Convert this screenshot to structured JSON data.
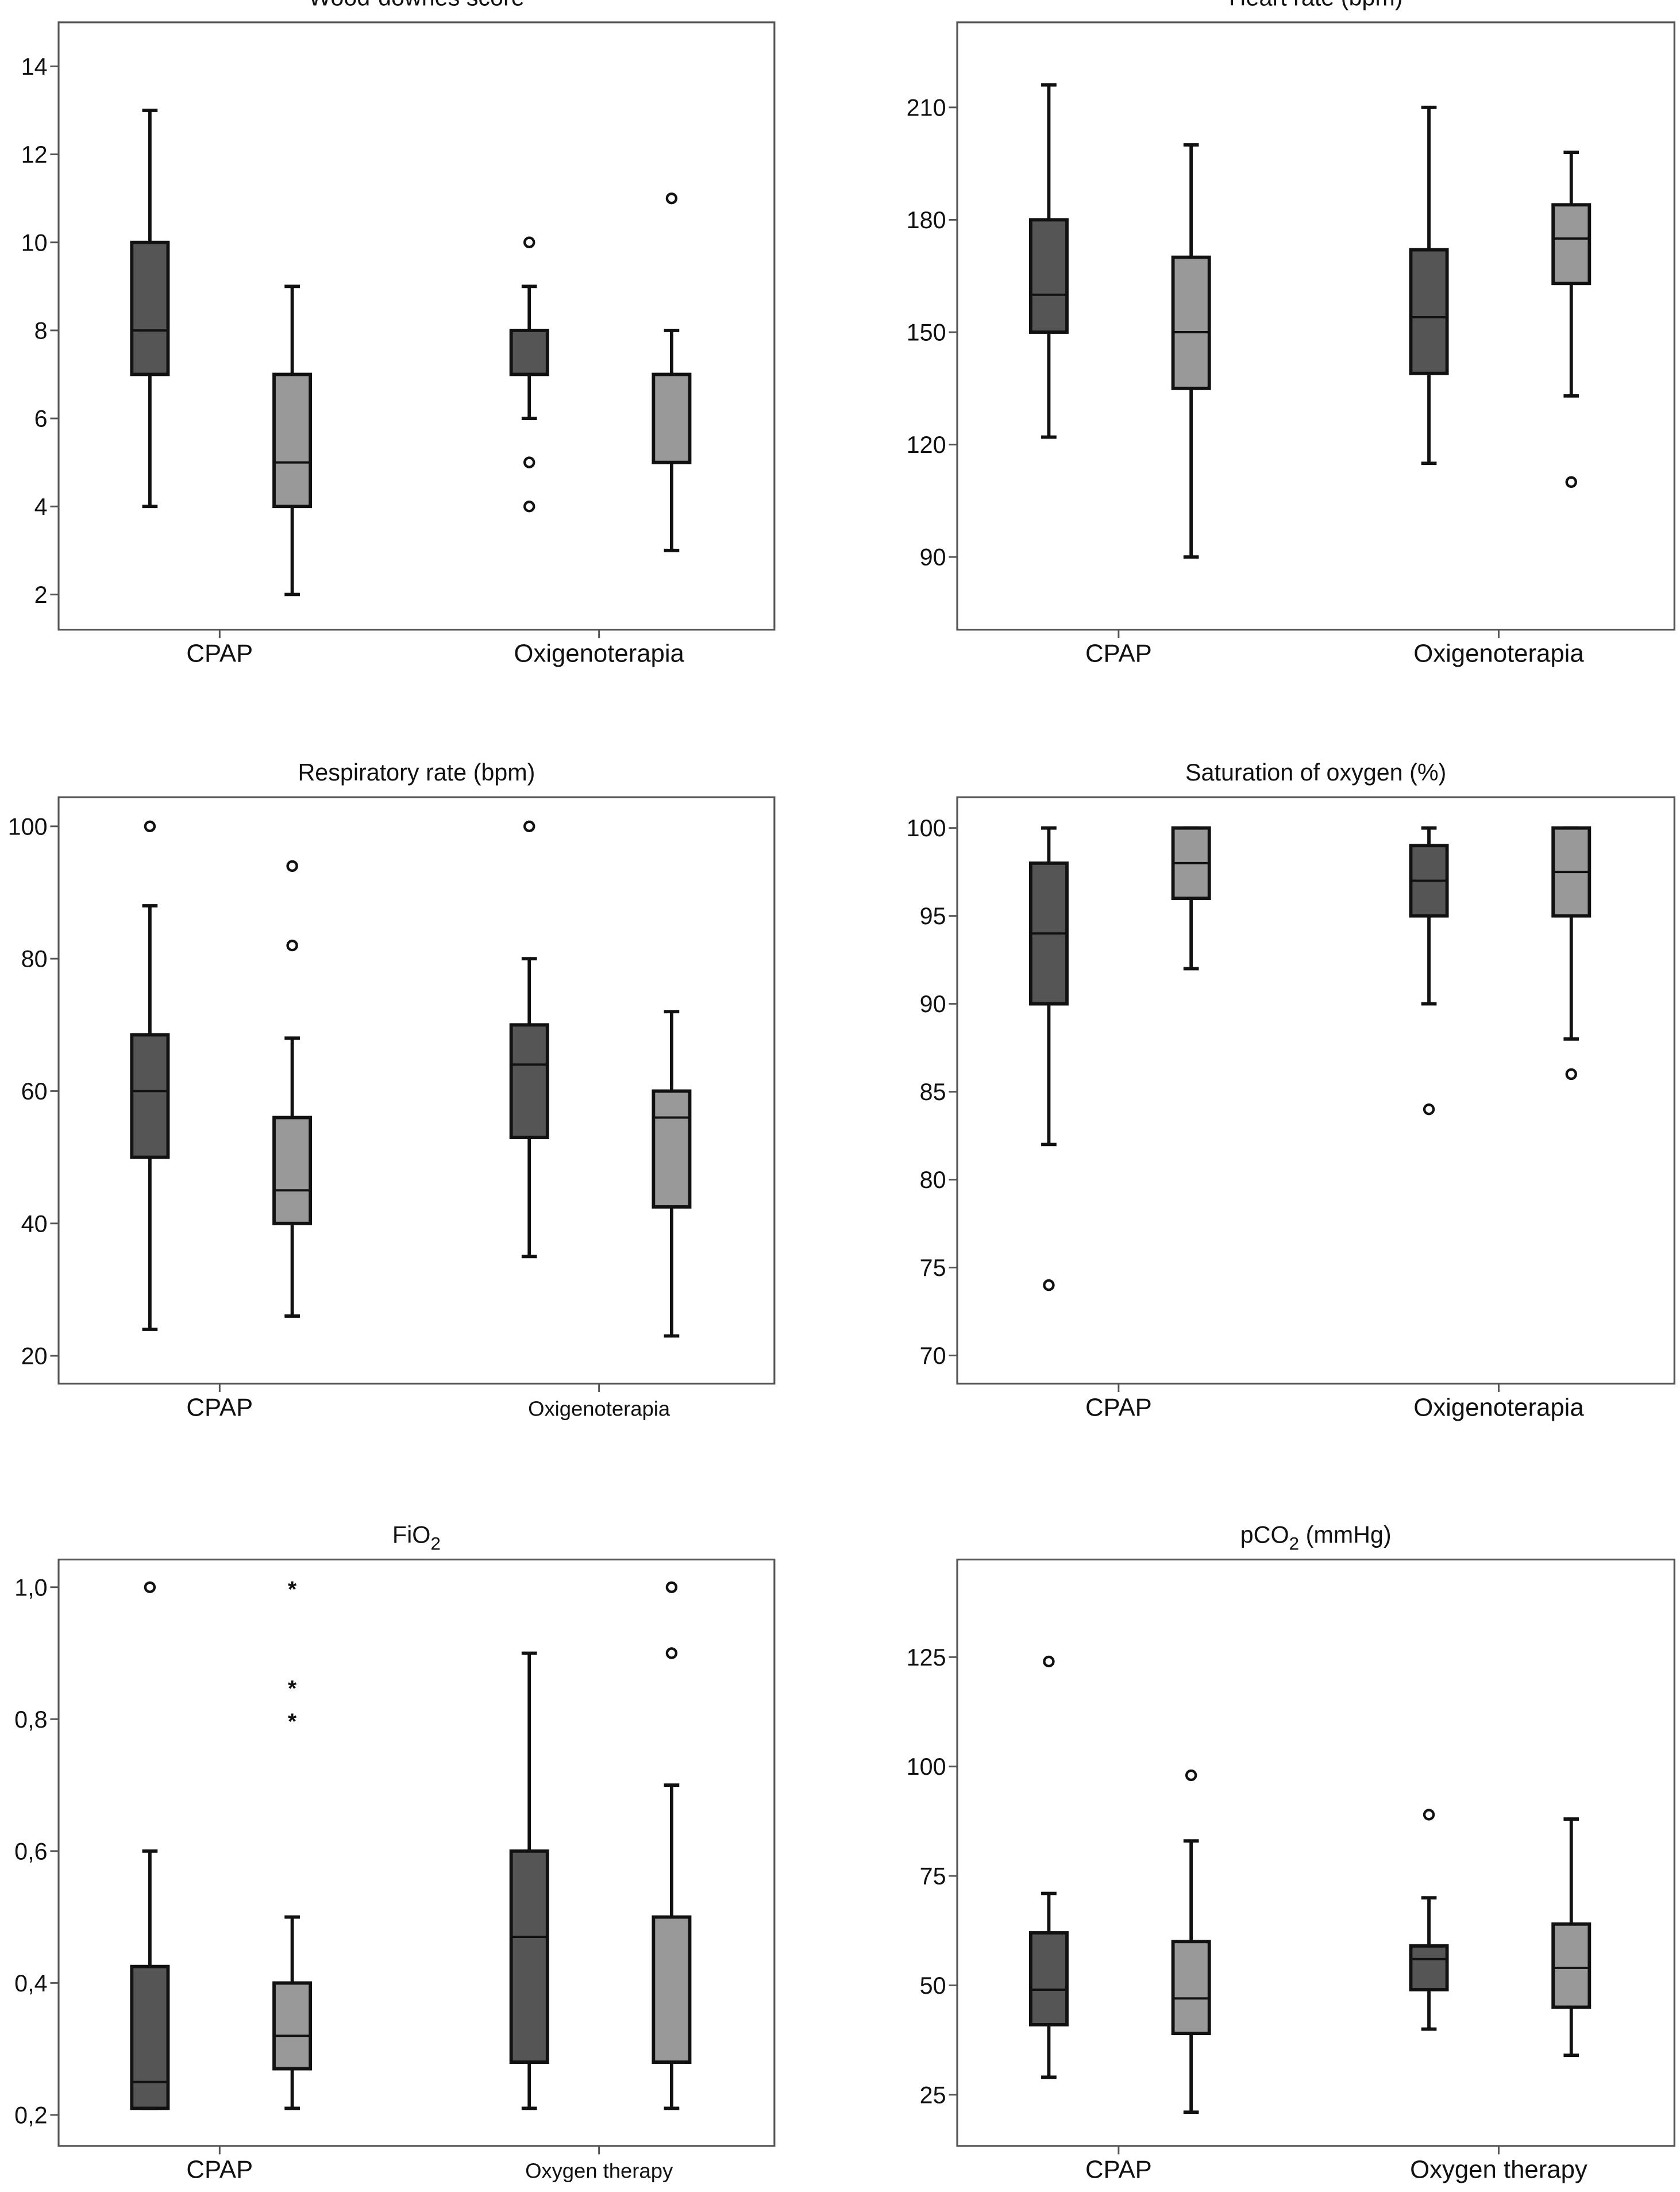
{
  "colors": {
    "group1": "#555555",
    "group2": "#999999",
    "stroke": "#111111",
    "frame": "#555555"
  },
  "chart_data": [
    {
      "type": "boxplot",
      "title": "Wood-downes score",
      "categories": [
        "CPAP",
        "Oxigenoterapia"
      ],
      "ylim": [
        1.2,
        15
      ],
      "yticks": [
        2,
        4,
        6,
        8,
        10,
        12,
        14
      ],
      "ytick_labels": [
        "2",
        "4",
        "6",
        "8",
        "10",
        "12",
        "14"
      ],
      "boxes": [
        {
          "category": "CPAP",
          "series": 1,
          "min": 4,
          "q1": 7,
          "median": 8,
          "q3": 10,
          "max": 13,
          "outliers": [],
          "extremes": []
        },
        {
          "category": "CPAP",
          "series": 2,
          "min": 2,
          "q1": 4,
          "median": 5,
          "q3": 7,
          "max": 9,
          "outliers": [],
          "extremes": []
        },
        {
          "category": "Oxigenoterapia",
          "series": 1,
          "min": 6,
          "q1": 7,
          "median": 8,
          "q3": 8,
          "max": 9,
          "outliers": [
            10,
            5,
            4
          ],
          "extremes": []
        },
        {
          "category": "Oxigenoterapia",
          "series": 2,
          "min": 3,
          "q1": 5,
          "median": 7,
          "q3": 7,
          "max": 8,
          "outliers": [
            11
          ],
          "extremes": []
        }
      ]
    },
    {
      "type": "boxplot",
      "title": "Heart rate (bpm)",
      "categories": [
        "CPAP",
        "Oxigenoterapia"
      ],
      "ylim": [
        70.6,
        232.7
      ],
      "yticks": [
        90,
        120,
        150,
        180,
        210
      ],
      "ytick_labels": [
        "90",
        "120",
        "150",
        "180",
        "210"
      ],
      "boxes": [
        {
          "category": "CPAP",
          "series": 1,
          "min": 122,
          "q1": 150,
          "median": 160,
          "q3": 180,
          "max": 216,
          "outliers": [],
          "extremes": []
        },
        {
          "category": "CPAP",
          "series": 2,
          "min": 90,
          "q1": 135,
          "median": 150,
          "q3": 170,
          "max": 200,
          "outliers": [],
          "extremes": []
        },
        {
          "category": "Oxigenoterapia",
          "series": 1,
          "min": 115,
          "q1": 139,
          "median": 154,
          "q3": 172,
          "max": 210,
          "outliers": [],
          "extremes": []
        },
        {
          "category": "Oxigenoterapia",
          "series": 2,
          "min": 133,
          "q1": 163,
          "median": 175,
          "q3": 184,
          "max": 198,
          "outliers": [
            110
          ],
          "extremes": []
        }
      ]
    },
    {
      "type": "boxplot",
      "title": "Respiratory rate (bpm)",
      "categories": [
        "CPAP",
        "Oxigenoterapia"
      ],
      "ylim": [
        15.8,
        104.4
      ],
      "yticks": [
        20,
        40,
        60,
        80,
        100
      ],
      "ytick_labels": [
        "20",
        "40",
        "60",
        "80",
        "100"
      ],
      "boxes": [
        {
          "category": "CPAP",
          "series": 1,
          "min": 24,
          "q1": 50,
          "median": 60,
          "q3": 68.5,
          "max": 88,
          "outliers": [
            100
          ],
          "extremes": []
        },
        {
          "category": "CPAP",
          "series": 2,
          "min": 26,
          "q1": 40,
          "median": 45,
          "q3": 56,
          "max": 68,
          "outliers": [
            94,
            82
          ],
          "extremes": []
        },
        {
          "category": "Oxigenoterapia",
          "series": 1,
          "min": 35,
          "q1": 53,
          "median": 64,
          "q3": 70,
          "max": 80,
          "outliers": [
            100
          ],
          "extremes": []
        },
        {
          "category": "Oxigenoterapia",
          "series": 2,
          "min": 23,
          "q1": 42.5,
          "median": 56,
          "q3": 60,
          "max": 72,
          "outliers": [],
          "extremes": []
        }
      ]
    },
    {
      "type": "boxplot",
      "title": "Saturation of oxygen (%)",
      "categories": [
        "CPAP",
        "Oxigenoterapia"
      ],
      "ylim": [
        68.4,
        101.75
      ],
      "yticks": [
        70,
        75,
        80,
        85,
        90,
        95,
        100
      ],
      "ytick_labels": [
        "70",
        "75",
        "80",
        "85",
        "90",
        "95",
        "100"
      ],
      "boxes": [
        {
          "category": "CPAP",
          "series": 1,
          "min": 82,
          "q1": 90,
          "median": 94,
          "q3": 98,
          "max": 100,
          "outliers": [
            74
          ],
          "extremes": []
        },
        {
          "category": "CPAP",
          "series": 2,
          "min": 92,
          "q1": 96,
          "median": 98,
          "q3": 100,
          "max": 100,
          "outliers": [],
          "extremes": []
        },
        {
          "category": "Oxigenoterapia",
          "series": 1,
          "min": 90,
          "q1": 95,
          "median": 97,
          "q3": 99,
          "max": 100,
          "outliers": [
            84
          ],
          "extremes": []
        },
        {
          "category": "Oxigenoterapia",
          "series": 2,
          "min": 88,
          "q1": 95,
          "median": 97.5,
          "q3": 100,
          "max": 100,
          "outliers": [
            86
          ],
          "extremes": []
        }
      ]
    },
    {
      "type": "boxplot",
      "title": "FiO",
      "title_subscript": "2",
      "title_suffix": "",
      "categories": [
        "CPAP",
        "Oxygen therapy"
      ],
      "ylim": [
        0.153,
        1.042
      ],
      "yticks": [
        0.2,
        0.4,
        0.6,
        0.8,
        1.0
      ],
      "ytick_labels": [
        "0,2",
        "0,4",
        "0,6",
        "0,8",
        "1,0"
      ],
      "boxes": [
        {
          "category": "CPAP",
          "series": 1,
          "min": 0.21,
          "q1": 0.21,
          "median": 0.25,
          "q3": 0.425,
          "max": 0.6,
          "outliers": [
            1.0
          ],
          "extremes": []
        },
        {
          "category": "CPAP",
          "series": 2,
          "min": 0.21,
          "q1": 0.27,
          "median": 0.32,
          "q3": 0.4,
          "max": 0.5,
          "outliers": [],
          "extremes": [
            1.0,
            0.85,
            0.8
          ]
        },
        {
          "category": "Oxygen therapy",
          "series": 1,
          "min": 0.21,
          "q1": 0.28,
          "median": 0.47,
          "q3": 0.6,
          "max": 0.9,
          "outliers": [],
          "extremes": []
        },
        {
          "category": "Oxygen therapy",
          "series": 2,
          "min": 0.21,
          "q1": 0.28,
          "median": 0.28,
          "q3": 0.5,
          "max": 0.7,
          "outliers": [
            1.0,
            0.9
          ],
          "extremes": []
        }
      ]
    },
    {
      "type": "boxplot",
      "title": "pCO",
      "title_subscript": "2",
      "title_suffix": " (mmHg)",
      "categories": [
        "CPAP",
        "Oxygen therapy"
      ],
      "ylim": [
        13.3,
        147.3
      ],
      "yticks": [
        25,
        50,
        75,
        100,
        125
      ],
      "ytick_labels": [
        "25",
        "50",
        "75",
        "100",
        "125"
      ],
      "boxes": [
        {
          "category": "CPAP",
          "series": 1,
          "min": 29,
          "q1": 41,
          "median": 49,
          "q3": 62,
          "max": 71,
          "outliers": [
            124
          ],
          "extremes": []
        },
        {
          "category": "CPAP",
          "series": 2,
          "min": 21,
          "q1": 39,
          "median": 47,
          "q3": 60,
          "max": 83,
          "outliers": [
            98
          ],
          "extremes": []
        },
        {
          "category": "Oxygen therapy",
          "series": 1,
          "min": 40,
          "q1": 49,
          "median": 56,
          "q3": 59,
          "max": 70,
          "outliers": [
            89
          ],
          "extremes": []
        },
        {
          "category": "Oxygen therapy",
          "series": 2,
          "min": 34,
          "q1": 45,
          "median": 54,
          "q3": 64,
          "max": 88,
          "outliers": [],
          "extremes": []
        }
      ]
    }
  ]
}
